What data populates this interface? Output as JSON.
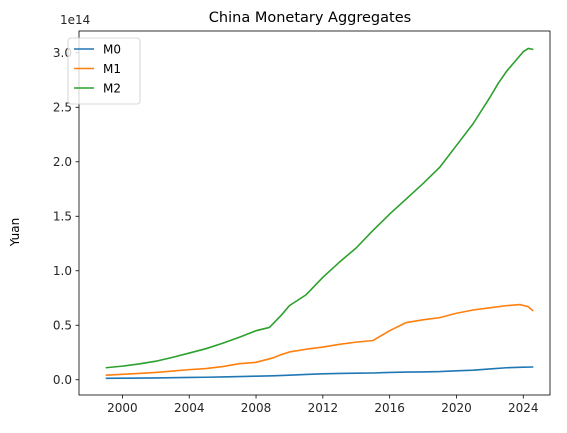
{
  "chart_data": {
    "type": "line",
    "title": "China Monetary Aggregates",
    "xlabel": "",
    "ylabel": "Yuan",
    "y_offset_text": "1e14",
    "y_scale_factor": 100000000000000.0,
    "xlim": [
      1997.4,
      2025.6
    ],
    "ylim": [
      -0.14,
      3.2
    ],
    "x_ticks": [
      2000,
      2004,
      2008,
      2012,
      2016,
      2020,
      2024
    ],
    "y_ticks": [
      0.0,
      0.5,
      1.0,
      1.5,
      2.0,
      2.5,
      3.0
    ],
    "x_tick_labels": [
      "2000",
      "2004",
      "2008",
      "2012",
      "2016",
      "2020",
      "2024"
    ],
    "y_tick_labels": [
      "0.0",
      "0.5",
      "1.0",
      "1.5",
      "2.0",
      "2.5",
      "3.0"
    ],
    "grid": false,
    "legend_position": "upper-left",
    "series": [
      {
        "name": "M0",
        "color": "#1f77b4",
        "x": [
          1999.0,
          2000.0,
          2001.0,
          2002.0,
          2003.0,
          2004.0,
          2005.0,
          2006.0,
          2007.0,
          2008.0,
          2009.0,
          2010.0,
          2011.0,
          2012.0,
          2013.0,
          2014.0,
          2015.0,
          2016.0,
          2017.0,
          2018.0,
          2019.0,
          2020.0,
          2021.0,
          2022.0,
          2023.0,
          2024.0,
          2024.6
        ],
        "y": [
          0.013,
          0.014,
          0.015,
          0.017,
          0.019,
          0.021,
          0.023,
          0.026,
          0.029,
          0.033,
          0.036,
          0.042,
          0.049,
          0.054,
          0.058,
          0.06,
          0.062,
          0.067,
          0.07,
          0.072,
          0.075,
          0.082,
          0.088,
          0.099,
          0.11,
          0.115,
          0.117
        ]
      },
      {
        "name": "M1",
        "color": "#ff7f0e",
        "x": [
          1999.0,
          2000.0,
          2001.0,
          2002.0,
          2003.0,
          2004.0,
          2005.0,
          2006.0,
          2007.0,
          2008.0,
          2009.0,
          2009.5,
          2010.0,
          2011.0,
          2012.0,
          2013.0,
          2014.0,
          2015.0,
          2016.0,
          2017.0,
          2018.0,
          2019.0,
          2020.0,
          2021.0,
          2022.0,
          2023.0,
          2023.8,
          2024.3,
          2024.6
        ],
        "y": [
          0.042,
          0.05,
          0.058,
          0.067,
          0.08,
          0.093,
          0.103,
          0.121,
          0.147,
          0.16,
          0.2,
          0.23,
          0.255,
          0.28,
          0.3,
          0.325,
          0.345,
          0.36,
          0.45,
          0.525,
          0.55,
          0.57,
          0.61,
          0.64,
          0.66,
          0.68,
          0.69,
          0.67,
          0.63
        ]
      },
      {
        "name": "M2",
        "color": "#2ca02c",
        "x": [
          1999.0,
          2000.0,
          2001.0,
          2002.0,
          2003.0,
          2004.0,
          2005.0,
          2006.0,
          2007.0,
          2008.0,
          2008.8,
          2009.5,
          2010.0,
          2011.0,
          2012.0,
          2013.0,
          2014.0,
          2015.0,
          2016.0,
          2017.0,
          2018.0,
          2019.0,
          2020.0,
          2021.0,
          2022.0,
          2022.5,
          2023.0,
          2023.5,
          2024.0,
          2024.3,
          2024.6
        ],
        "y": [
          0.11,
          0.125,
          0.145,
          0.17,
          0.205,
          0.245,
          0.285,
          0.335,
          0.39,
          0.45,
          0.48,
          0.59,
          0.68,
          0.78,
          0.94,
          1.08,
          1.21,
          1.37,
          1.52,
          1.66,
          1.8,
          1.95,
          2.15,
          2.35,
          2.59,
          2.72,
          2.83,
          2.92,
          3.01,
          3.04,
          3.03
        ]
      }
    ]
  }
}
